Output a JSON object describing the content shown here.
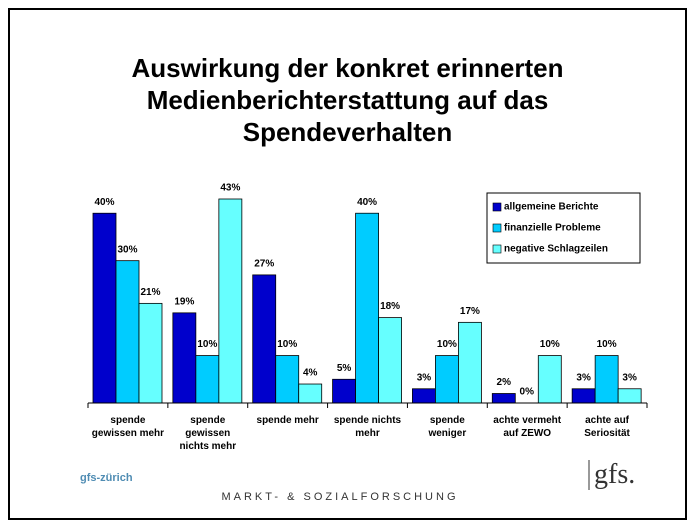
{
  "chart_data": {
    "type": "bar",
    "title": "Auswirkung der konkret erinnerten Medienberichterstattung auf das Spendeverhalten",
    "categories": [
      "spende gewissen mehr",
      "spende gewissen nichts mehr",
      "spende mehr",
      "spende nichts mehr",
      "spende weniger",
      "achte vermeht auf ZEWO",
      "achte auf Seriosität"
    ],
    "series": [
      {
        "name": "allgemeine Berichte",
        "color": "#0000CC",
        "values": [
          40,
          19,
          27,
          5,
          3,
          2,
          3
        ],
        "value_labels": [
          "40%",
          "19%",
          "27%",
          "5%",
          "3%",
          "2%",
          "3%"
        ]
      },
      {
        "name": "finanzielle Probleme",
        "color": "#00CCFF",
        "values": [
          30,
          10,
          10,
          40,
          10,
          0,
          10
        ],
        "value_labels": [
          "30%",
          "10%",
          "10%",
          "40%",
          "10%",
          "0%",
          "10%"
        ]
      },
      {
        "name": "negative Schlagzeilen",
        "color": "#66FFFF",
        "values": [
          21,
          43,
          4,
          18,
          17,
          10,
          3
        ],
        "value_labels": [
          "21%",
          "43%",
          "4%",
          "18%",
          "17%",
          "10%",
          "3%"
        ]
      }
    ],
    "ylim": [
      0,
      43
    ],
    "legend": "top-right"
  },
  "footer": {
    "organization": "gfs-zürich",
    "tagline": "MARKT- & SOZIALFORSCHUNG",
    "logo": "gfs."
  }
}
